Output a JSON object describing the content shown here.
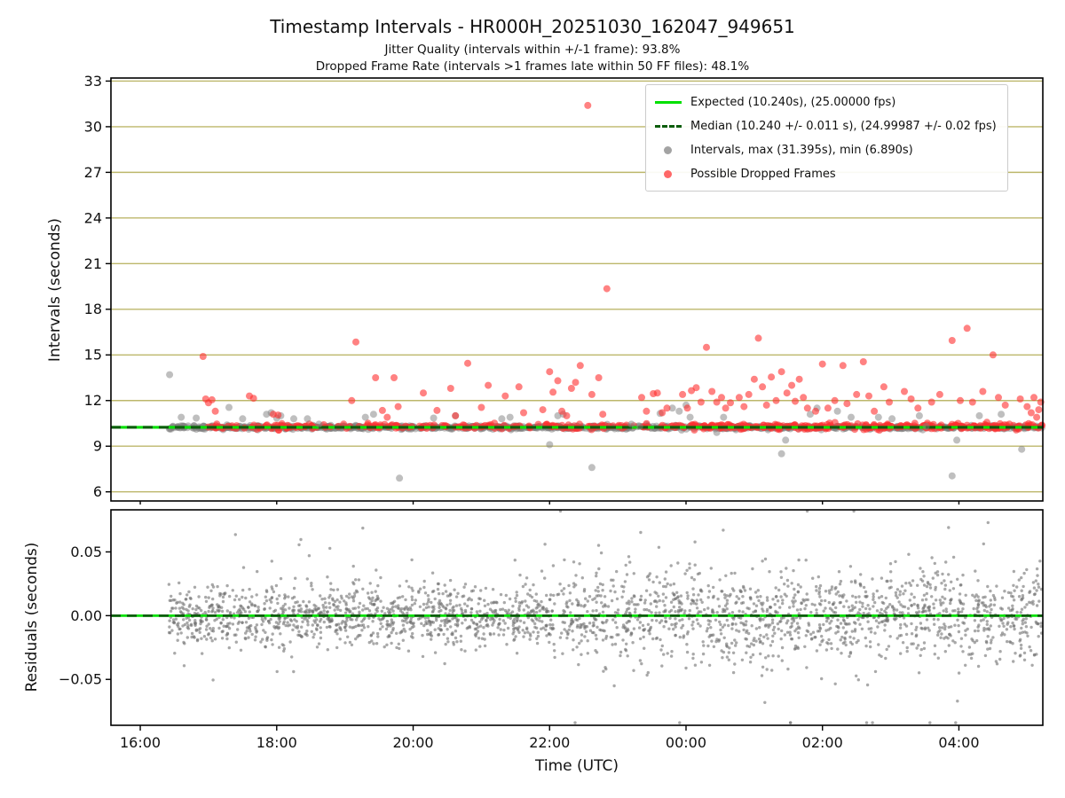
{
  "figure": {
    "title": "Timestamp Intervals - HR000H_20251030_162047_949651",
    "subtitle_line1": "Jitter Quality (intervals within +/-1 frame): 93.8%",
    "subtitle_line2": "Dropped Frame Rate (intervals >1 frames late within 50 FF files): 48.1%",
    "xlabel": "Time (UTC)"
  },
  "colors": {
    "expected_line": "#00e000",
    "median_line": "#0b5d0b",
    "intervals_point": "#808080",
    "dropped_point": "#ff2e2e",
    "residual_point": "#707070",
    "top_grid": "#bdb76b",
    "spine": "#000000"
  },
  "legend": {
    "items": [
      {
        "type": "line-solid",
        "color_key": "expected_line",
        "label": "Expected (10.240s), (25.00000 fps)"
      },
      {
        "type": "line-dashed",
        "color_key": "median_line",
        "label": "Median (10.240 +/- 0.011 s), (24.99987 +/- 0.02 fps)"
      },
      {
        "type": "dot",
        "color_key": "intervals_point",
        "label": "Intervals, max (31.395s), min (6.890s)"
      },
      {
        "type": "dot",
        "color_key": "dropped_point",
        "label": "Possible Dropped Frames"
      }
    ]
  },
  "chart_data": [
    {
      "name": "intervals",
      "type": "scatter",
      "ylabel": "Intervals (seconds)",
      "ylim": [
        5.4,
        33.2
      ],
      "yticks": [
        {
          "v": 6,
          "label": "6"
        },
        {
          "v": 9,
          "label": "9"
        },
        {
          "v": 12,
          "label": "12"
        },
        {
          "v": 15,
          "label": "15"
        },
        {
          "v": 18,
          "label": "18"
        },
        {
          "v": 21,
          "label": "21"
        },
        {
          "v": 24,
          "label": "24"
        },
        {
          "v": 27,
          "label": "27"
        },
        {
          "v": 30,
          "label": "30"
        },
        {
          "v": 33,
          "label": "33"
        }
      ],
      "x_hours_lim": [
        15.57,
        29.23
      ],
      "xticks": [
        {
          "hour": 16,
          "label": "16:00"
        },
        {
          "hour": 18,
          "label": "18:00"
        },
        {
          "hour": 20,
          "label": "20:00"
        },
        {
          "hour": 22,
          "label": "22:00"
        },
        {
          "hour": 24,
          "label": "00:00"
        },
        {
          "hour": 26,
          "label": "02:00"
        },
        {
          "hour": 28,
          "label": "04:00"
        }
      ],
      "show_xtick_labels": false,
      "grid": "horizontal",
      "stats": {
        "expected_interval_s": 10.24,
        "expected_fps": "25.00000",
        "median_interval_s": "10.240 +/- 0.011",
        "median_fps": "24.99987 +/- 0.02",
        "max_interval_s": 31.395,
        "min_interval_s": 6.89,
        "jitter_quality_pct": 93.8,
        "dropped_frame_rate_pct": 48.1,
        "ff_files": 50
      },
      "reference_lines": [
        {
          "y": 10.24,
          "style": "solid",
          "color_key": "expected_line",
          "width": 3.2
        },
        {
          "y": 10.24,
          "style": "dashed",
          "color_key": "median_line",
          "width": 3.2
        }
      ],
      "series": [
        {
          "name": "Intervals",
          "color_key": "intervals_point",
          "marker_r": 4,
          "opacity": 0.5,
          "band": {
            "x_start": 16.42,
            "x_end": 29.22,
            "center": 10.24,
            "sigma": 0.055,
            "clip": [
              9.95,
              10.58
            ],
            "n": 950
          },
          "points": [
            [
              16.43,
              13.7
            ],
            [
              16.6,
              10.9
            ],
            [
              16.82,
              10.85
            ],
            [
              17.3,
              11.55
            ],
            [
              17.5,
              10.8
            ],
            [
              17.85,
              11.1
            ],
            [
              17.92,
              11.2
            ],
            [
              18.0,
              10.85
            ],
            [
              18.06,
              11.0
            ],
            [
              18.25,
              10.8
            ],
            [
              18.45,
              10.8
            ],
            [
              18.62,
              10.45
            ],
            [
              19.3,
              10.9
            ],
            [
              19.42,
              11.1
            ],
            [
              19.8,
              6.9
            ],
            [
              20.3,
              10.85
            ],
            [
              20.62,
              11.0
            ],
            [
              21.3,
              10.8
            ],
            [
              21.42,
              10.9
            ],
            [
              22.0,
              9.1
            ],
            [
              22.12,
              11.0
            ],
            [
              22.2,
              11.1
            ],
            [
              22.62,
              7.6
            ],
            [
              23.2,
              10.45
            ],
            [
              23.32,
              10.3
            ],
            [
              23.62,
              11.15
            ],
            [
              23.8,
              11.5
            ],
            [
              23.9,
              11.3
            ],
            [
              24.0,
              11.7
            ],
            [
              24.06,
              10.9
            ],
            [
              24.45,
              9.9
            ],
            [
              24.55,
              10.9
            ],
            [
              25.4,
              8.5
            ],
            [
              25.46,
              9.4
            ],
            [
              25.82,
              11.1
            ],
            [
              25.92,
              11.5
            ],
            [
              26.22,
              11.3
            ],
            [
              26.42,
              10.9
            ],
            [
              26.82,
              10.9
            ],
            [
              27.02,
              10.8
            ],
            [
              27.42,
              11.0
            ],
            [
              27.52,
              10.3
            ],
            [
              27.9,
              7.05
            ],
            [
              27.97,
              9.4
            ],
            [
              28.3,
              11.0
            ],
            [
              28.62,
              11.1
            ],
            [
              28.92,
              8.8
            ]
          ]
        },
        {
          "name": "Possible Dropped Frames",
          "color_key": "dropped_point",
          "marker_r": 4,
          "opacity": 0.6,
          "band": {
            "center": 10.3,
            "sigma": 0.09,
            "clip": [
              10.05,
              10.9
            ],
            "segments": [
              {
                "x_start": 16.9,
                "x_end": 24.0,
                "n": 180
              },
              {
                "x_start": 24.0,
                "x_end": 29.22,
                "n": 260
              }
            ]
          },
          "points": [
            [
              16.92,
              14.9
            ],
            [
              16.96,
              12.1
            ],
            [
              17.0,
              11.85
            ],
            [
              17.05,
              12.05
            ],
            [
              17.1,
              11.3
            ],
            [
              17.6,
              12.3
            ],
            [
              17.66,
              12.15
            ],
            [
              17.95,
              11.1
            ],
            [
              18.02,
              11.05
            ],
            [
              19.1,
              12.0
            ],
            [
              19.16,
              15.85
            ],
            [
              19.45,
              13.5
            ],
            [
              19.55,
              11.35
            ],
            [
              19.62,
              10.9
            ],
            [
              19.72,
              13.5
            ],
            [
              19.78,
              11.6
            ],
            [
              20.15,
              12.5
            ],
            [
              20.35,
              11.35
            ],
            [
              20.55,
              12.8
            ],
            [
              20.62,
              11.0
            ],
            [
              20.8,
              14.45
            ],
            [
              21.0,
              11.55
            ],
            [
              21.1,
              13.0
            ],
            [
              21.35,
              12.3
            ],
            [
              21.55,
              12.9
            ],
            [
              21.62,
              11.2
            ],
            [
              21.9,
              11.4
            ],
            [
              22.0,
              13.9
            ],
            [
              22.05,
              12.55
            ],
            [
              22.12,
              13.3
            ],
            [
              22.18,
              11.3
            ],
            [
              22.25,
              11.0
            ],
            [
              22.32,
              12.8
            ],
            [
              22.38,
              13.2
            ],
            [
              22.45,
              14.3
            ],
            [
              22.56,
              31.4
            ],
            [
              22.62,
              12.4
            ],
            [
              22.72,
              13.5
            ],
            [
              22.78,
              11.1
            ],
            [
              22.84,
              19.35
            ],
            [
              23.35,
              12.2
            ],
            [
              23.42,
              11.3
            ],
            [
              23.52,
              12.45
            ],
            [
              23.58,
              12.5
            ],
            [
              23.65,
              11.2
            ],
            [
              23.72,
              11.5
            ],
            [
              23.95,
              12.4
            ],
            [
              24.02,
              11.5
            ],
            [
              24.08,
              12.65
            ],
            [
              24.15,
              12.85
            ],
            [
              24.22,
              11.9
            ],
            [
              24.3,
              15.5
            ],
            [
              24.38,
              12.6
            ],
            [
              24.45,
              11.9
            ],
            [
              24.52,
              12.2
            ],
            [
              24.58,
              11.5
            ],
            [
              24.65,
              11.85
            ],
            [
              24.78,
              12.2
            ],
            [
              24.85,
              11.6
            ],
            [
              24.92,
              12.4
            ],
            [
              25.0,
              13.4
            ],
            [
              25.06,
              16.1
            ],
            [
              25.12,
              12.9
            ],
            [
              25.18,
              11.7
            ],
            [
              25.25,
              13.55
            ],
            [
              25.32,
              12.0
            ],
            [
              25.4,
              13.9
            ],
            [
              25.48,
              12.5
            ],
            [
              25.55,
              13.0
            ],
            [
              25.6,
              11.95
            ],
            [
              25.66,
              13.4
            ],
            [
              25.72,
              12.2
            ],
            [
              25.78,
              11.5
            ],
            [
              25.9,
              11.3
            ],
            [
              26.0,
              14.4
            ],
            [
              26.08,
              11.5
            ],
            [
              26.18,
              12.0
            ],
            [
              26.3,
              14.3
            ],
            [
              26.36,
              11.8
            ],
            [
              26.5,
              12.4
            ],
            [
              26.6,
              14.55
            ],
            [
              26.68,
              12.3
            ],
            [
              26.76,
              11.3
            ],
            [
              26.9,
              12.9
            ],
            [
              26.98,
              11.9
            ],
            [
              27.2,
              12.6
            ],
            [
              27.3,
              12.1
            ],
            [
              27.4,
              11.5
            ],
            [
              27.6,
              11.9
            ],
            [
              27.72,
              12.4
            ],
            [
              27.9,
              15.95
            ],
            [
              28.02,
              12.0
            ],
            [
              28.12,
              16.75
            ],
            [
              28.2,
              11.9
            ],
            [
              28.35,
              12.6
            ],
            [
              28.5,
              15.0
            ],
            [
              28.58,
              12.2
            ],
            [
              28.68,
              11.7
            ],
            [
              28.9,
              12.1
            ],
            [
              29.0,
              11.6
            ],
            [
              29.06,
              11.2
            ],
            [
              29.1,
              12.2
            ],
            [
              29.14,
              10.9
            ],
            [
              29.17,
              11.4
            ],
            [
              29.2,
              11.9
            ]
          ]
        }
      ]
    },
    {
      "name": "residuals",
      "type": "scatter",
      "ylabel": "Residuals (seconds)",
      "ylim": [
        -0.086,
        0.083
      ],
      "yticks": [
        {
          "v": -0.05,
          "label": "−0.05"
        },
        {
          "v": 0.0,
          "label": "0.00"
        },
        {
          "v": 0.05,
          "label": "0.05"
        }
      ],
      "x_hours_lim": [
        15.57,
        29.23
      ],
      "xticks": [
        {
          "hour": 16,
          "label": "16:00"
        },
        {
          "hour": 18,
          "label": "18:00"
        },
        {
          "hour": 20,
          "label": "20:00"
        },
        {
          "hour": 22,
          "label": "22:00"
        },
        {
          "hour": 24,
          "label": "00:00"
        },
        {
          "hour": 26,
          "label": "02:00"
        },
        {
          "hour": 28,
          "label": "04:00"
        }
      ],
      "show_xtick_labels": true,
      "grid": "none",
      "reference_lines": [
        {
          "y": 0,
          "style": "solid",
          "color_key": "expected_line",
          "width": 2.8
        },
        {
          "y": 0,
          "style": "dashed",
          "color_key": "median_line",
          "width": 2.8
        }
      ],
      "series": [
        {
          "name": "Residuals",
          "color_key": "residual_point",
          "marker_r": 1.7,
          "opacity": 0.6,
          "band": {
            "x_start": 16.42,
            "x_end": 29.22,
            "center": 0,
            "sigma": 0.012,
            "sigma2": 0.019,
            "sigma2_from": 22.0,
            "tail_frac": 0.04,
            "tail_mult": 2.6,
            "clip": [
              -0.084,
              0.082
            ],
            "n": 2600
          },
          "points": []
        }
      ]
    }
  ]
}
